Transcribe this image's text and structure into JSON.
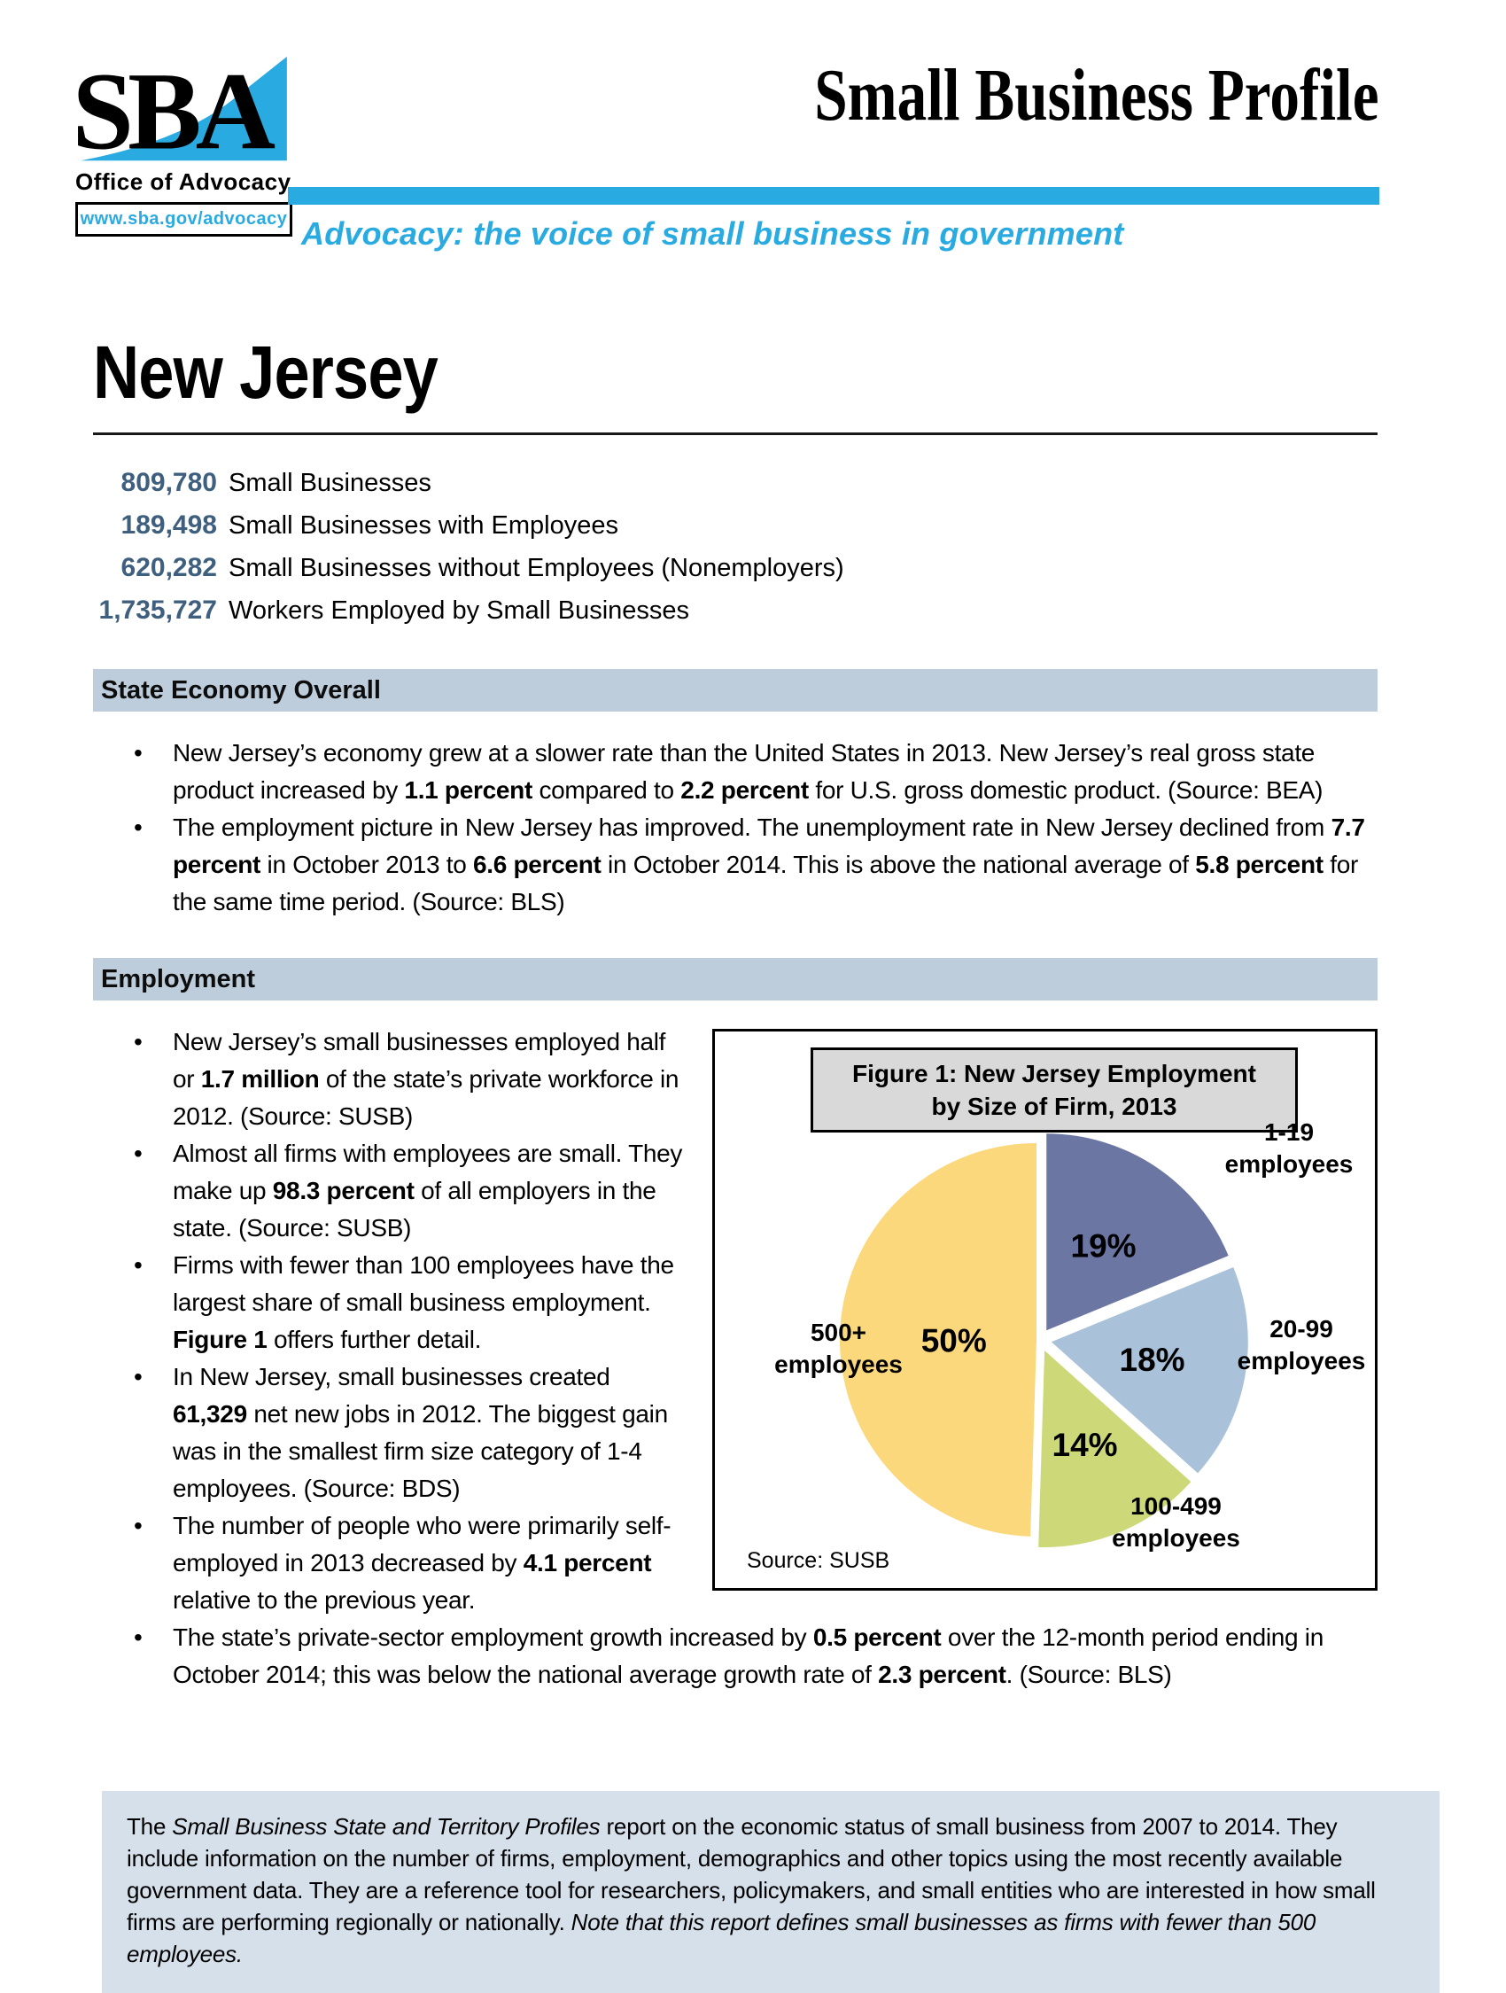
{
  "header": {
    "logo_text": "SBA",
    "office": "Office of Advocacy",
    "link": "www.sba.gov/advocacy",
    "profile_title": "Small Business Profile",
    "tagline": "Advocacy: the voice of small business in government"
  },
  "state_title": "New Jersey",
  "stats": [
    {
      "value": "809,780",
      "label": "Small Businesses"
    },
    {
      "value": "189,498",
      "label": "Small Businesses with Employees"
    },
    {
      "value": "620,282",
      "label": "Small Businesses without Employees (Nonemployers)"
    },
    {
      "value": "1,735,727",
      "label": "Workers Employed by Small Businesses"
    }
  ],
  "economy": {
    "header": "State Economy Overall",
    "bullets": [
      [
        {
          "t": "New Jersey’s economy grew at a slower rate than the United States in 2013. New Jersey’s real gross state product increased by "
        },
        {
          "t": "1.1 percent",
          "b": true
        },
        {
          "t": " compared to "
        },
        {
          "t": "2.2 percent",
          "b": true
        },
        {
          "t": " for U.S. gross domestic product. (Source: BEA)"
        }
      ],
      [
        {
          "t": "The employment picture in New Jersey has improved. The unemployment rate in New Jersey declined from "
        },
        {
          "t": "7.7 percent",
          "b": true
        },
        {
          "t": " in October 2013 to "
        },
        {
          "t": "6.6 percent",
          "b": true
        },
        {
          "t": " in October 2014. This is above the national average of "
        },
        {
          "t": "5.8 percent",
          "b": true
        },
        {
          "t": " for the same time period. (Source: BLS)"
        }
      ]
    ]
  },
  "employment": {
    "header": "Employment",
    "bullets": [
      [
        {
          "t": "New Jersey’s small businesses employed half or "
        },
        {
          "t": "1.7 million",
          "b": true
        },
        {
          "t": " of the state’s private workforce in 2012. (Source: SUSB)"
        }
      ],
      [
        {
          "t": "Almost  all firms with employees are small. They make up "
        },
        {
          "t": "98.3 percent",
          "b": true
        },
        {
          "t": " of all employers in the state. (Source: SUSB)"
        }
      ],
      [
        {
          "t": "Firms with fewer than 100 employees have the largest share of small business employment. "
        },
        {
          "t": "Figure 1",
          "b": true
        },
        {
          "t": " offers further detail."
        }
      ],
      [
        {
          "t": "In New Jersey, small businesses created "
        },
        {
          "t": "61,329",
          "b": true
        },
        {
          "t": " net new jobs in 2012. The biggest gain was in the smallest firm size category of 1-4 employees. (Source: BDS)"
        }
      ],
      [
        {
          "t": "The number of people who were primarily self-employed in 2013 decreased by "
        },
        {
          "t": "4.1 percent",
          "b": true
        },
        {
          "t": " relative to the previous year."
        }
      ],
      [
        {
          "t": "The state’s private-sector employment growth increased by "
        },
        {
          "t": "0.5 percent",
          "b": true
        },
        {
          "t": " over the 12-month period ending in October 2014; this was below the national average growth rate of "
        },
        {
          "t": "2.3 percent",
          "b": true
        },
        {
          "t": ". (Source: BLS)"
        }
      ]
    ]
  },
  "figure": {
    "title_lines": [
      "Figure 1: New Jersey Employment",
      "by Size of Firm, 2013"
    ],
    "source": "Source: SUSB"
  },
  "chart_data": {
    "type": "pie",
    "title": "Figure 1: New Jersey Employment by Size of Firm, 2013",
    "units": "percent of state employment",
    "slices": [
      {
        "label": "1-19 employees",
        "value": 19,
        "pct_label": "19%",
        "color": "#6B76A3",
        "explode": 13
      },
      {
        "label": "20-99 employees",
        "value": 18,
        "pct_label": "18%",
        "color": "#A9C1D9",
        "explode": 13
      },
      {
        "label": "100-499 employees",
        "value": 14,
        "pct_label": "14%",
        "color": "#CDD878",
        "explode": 13
      },
      {
        "label": "500+ employees",
        "value": 50,
        "pct_label": "50%",
        "color": "#FAD87B",
        "explode": 4
      }
    ],
    "source": "Source: SUSB",
    "legend_position": "outside-labels"
  },
  "footer": {
    "segments": [
      {
        "t": "The "
      },
      {
        "t": "Small Business State and Territory Profiles",
        "i": true
      },
      {
        "t": " report on the economic status of small business from 2007 to 2014. They include information on the number of firms, employment, demographics and other topics using the most recently available government data. They are a reference tool for researchers, policymakers, and small entities who are interested in how small firms are performing regionally or nationally. "
      },
      {
        "t": "Note that this report defines small businesses as firms with fewer than 500 employees.",
        "i": true
      }
    ]
  },
  "colors": {
    "accent_cyan": "#29ABE2",
    "stat_number_blue": "#3E5F7E",
    "section_bar_bg": "#BDCDDC",
    "footer_bg": "#D6E0EB",
    "figure_title_bg": "#D9D9D9"
  }
}
